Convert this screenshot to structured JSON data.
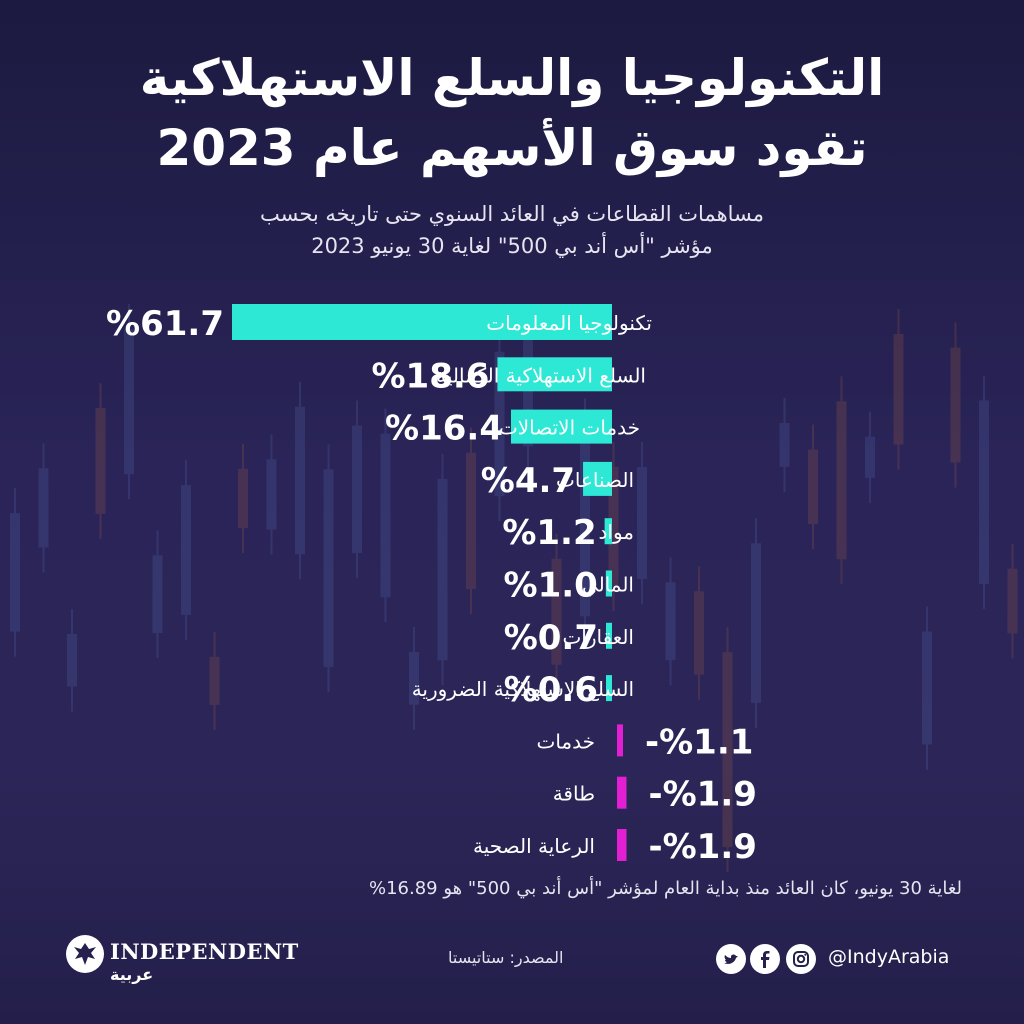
{
  "header": {
    "title_line1": "التكنولوجيا والسلع الاستهلاكية",
    "title_line2": "تقود سوق الأسهم عام 2023",
    "subtitle_line1": "مساهمات القطاعات في العائد السنوي حتى تاريخه بحسب",
    "subtitle_line2": "مؤشر \"أس أند بي 500\" لغاية 30 يونيو 2023"
  },
  "colors": {
    "positive": "#2ee8d6",
    "negative": "#e21fd3",
    "background": "#25204d",
    "text": "#ffffff"
  },
  "chart_data": {
    "type": "bar",
    "orientation": "horizontal",
    "unit": "%",
    "categories": [
      "تكنولوجيا المعلومات",
      "السلع الاستهلاكية الكمالية",
      "خدمات الاتصالات",
      "الصناعات",
      "مواد",
      "المالي",
      "العقارات",
      "السلع الاستهلاكية الضرورية",
      "خدمات",
      "طاقة",
      "الرعاية الصحية"
    ],
    "values": [
      61.7,
      18.6,
      16.4,
      4.7,
      1.2,
      1.0,
      0.7,
      0.6,
      -1.1,
      -1.9,
      -1.9
    ],
    "value_labels": [
      "%61.7",
      "%18.6",
      "%16.4",
      "%4.7",
      "%1.2",
      "%1.0",
      "%0.7",
      "%0.6",
      "-%1.1",
      "-%1.9",
      "-%1.9"
    ],
    "title": "التكنولوجيا والسلع الاستهلاكية تقود سوق الأسهم عام 2023",
    "xlabel": "",
    "ylabel": ""
  },
  "footer": {
    "note": "لغاية 30 يونيو، كان العائد منذ بداية العام لمؤشر \"أس أند بي 500\" هو 16.89%",
    "source": "المصدر: ستاتيستا",
    "logo_text": "INDEPENDENT",
    "logo_arabic": "عربية",
    "handle": "@IndyArabia",
    "social_icons": [
      "twitter-icon",
      "facebook-icon",
      "instagram-icon"
    ]
  }
}
